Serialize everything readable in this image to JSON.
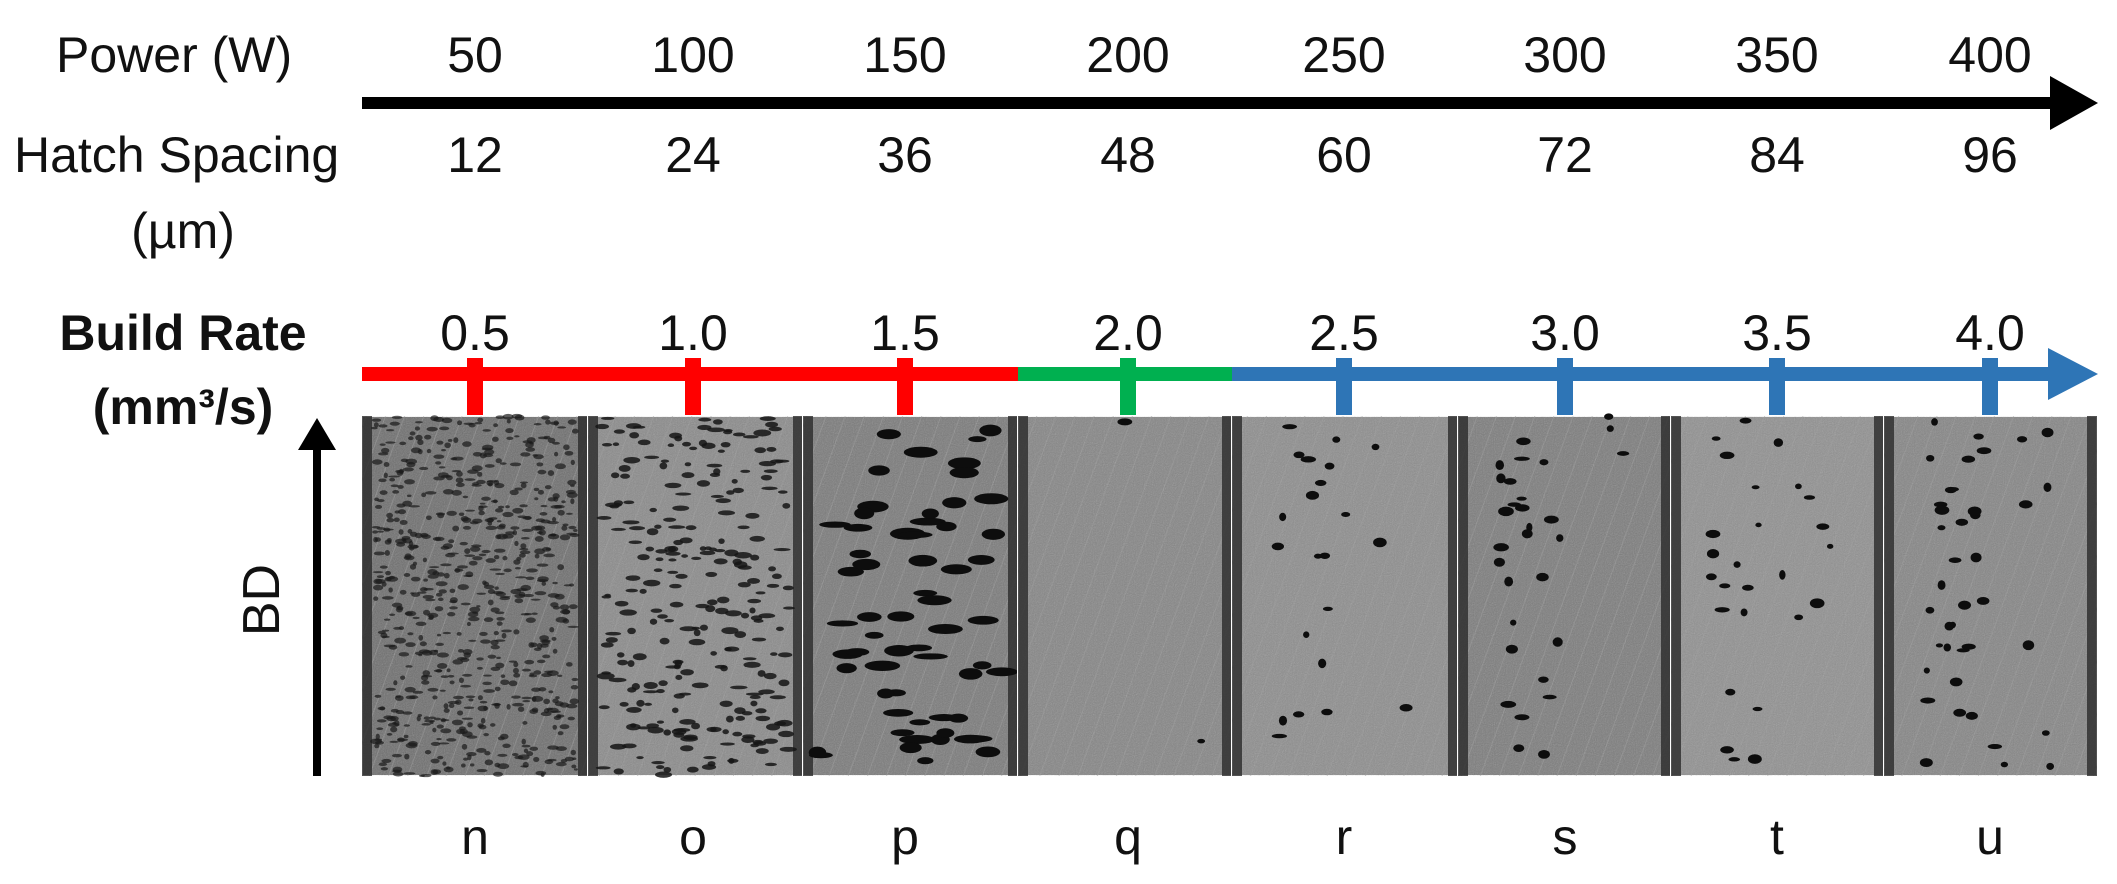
{
  "power": {
    "label": "Power (W)",
    "values": [
      "50",
      "100",
      "150",
      "200",
      "250",
      "300",
      "350",
      "400"
    ]
  },
  "hatch": {
    "label_line1": "Hatch Spacing",
    "label_line2": "(µm)",
    "values": [
      "12",
      "24",
      "36",
      "48",
      "60",
      "72",
      "84",
      "96"
    ]
  },
  "build_rate": {
    "label_line1": "Build Rate",
    "label_line2": "(mm³/s)",
    "values": [
      "0.5",
      "1.0",
      "1.5",
      "2.0",
      "2.5",
      "3.0",
      "3.5",
      "4.0"
    ],
    "segment_colors": {
      "red": "#ff0000",
      "green": "#00b050",
      "blue": "#2e75b6"
    }
  },
  "bd_label": "BD",
  "samples": [
    {
      "id": "n",
      "style": "dense-pores"
    },
    {
      "id": "o",
      "style": "lack-of-fusion-lines"
    },
    {
      "id": "p",
      "style": "lack-of-fusion-pores"
    },
    {
      "id": "q",
      "style": "dense"
    },
    {
      "id": "r",
      "style": "keyhole-sparse"
    },
    {
      "id": "s",
      "style": "keyhole-medium"
    },
    {
      "id": "t",
      "style": "keyhole-medium"
    },
    {
      "id": "u",
      "style": "keyhole-heavy"
    }
  ],
  "icons": {
    "power_axis": "arrow-right-icon",
    "build_axis": "arrow-right-icon",
    "build_direction": "arrow-up-icon"
  }
}
